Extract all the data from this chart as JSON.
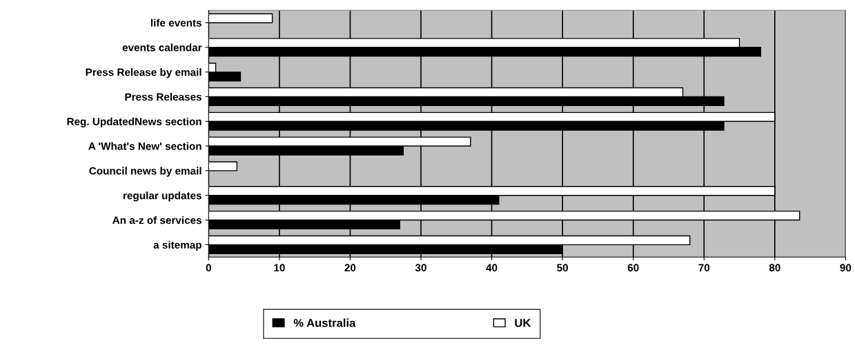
{
  "chart_data": {
    "type": "bar",
    "orientation": "horizontal",
    "categories": [
      "life events",
      "events calendar",
      "Press Release by email",
      "Press Releases",
      "Reg. UpdatedNews section",
      "A 'What's New' section",
      "Council news by email",
      "regular updates",
      "An a-z of services",
      "a sitemap"
    ],
    "series": [
      {
        "name": "% Australia",
        "color": "#000000",
        "values": [
          null,
          78,
          4.5,
          72.8,
          72.8,
          27.5,
          null,
          41,
          27,
          50
        ]
      },
      {
        "name": "UK",
        "color": "#ffffff",
        "values": [
          9,
          75,
          1,
          67,
          80,
          37,
          4,
          80,
          83.5,
          68
        ]
      }
    ],
    "xlim": [
      0,
      90
    ],
    "xticks": [
      0,
      10,
      20,
      30,
      40,
      50,
      60,
      70,
      80,
      90
    ],
    "grid": "x",
    "legend": "bottom"
  }
}
